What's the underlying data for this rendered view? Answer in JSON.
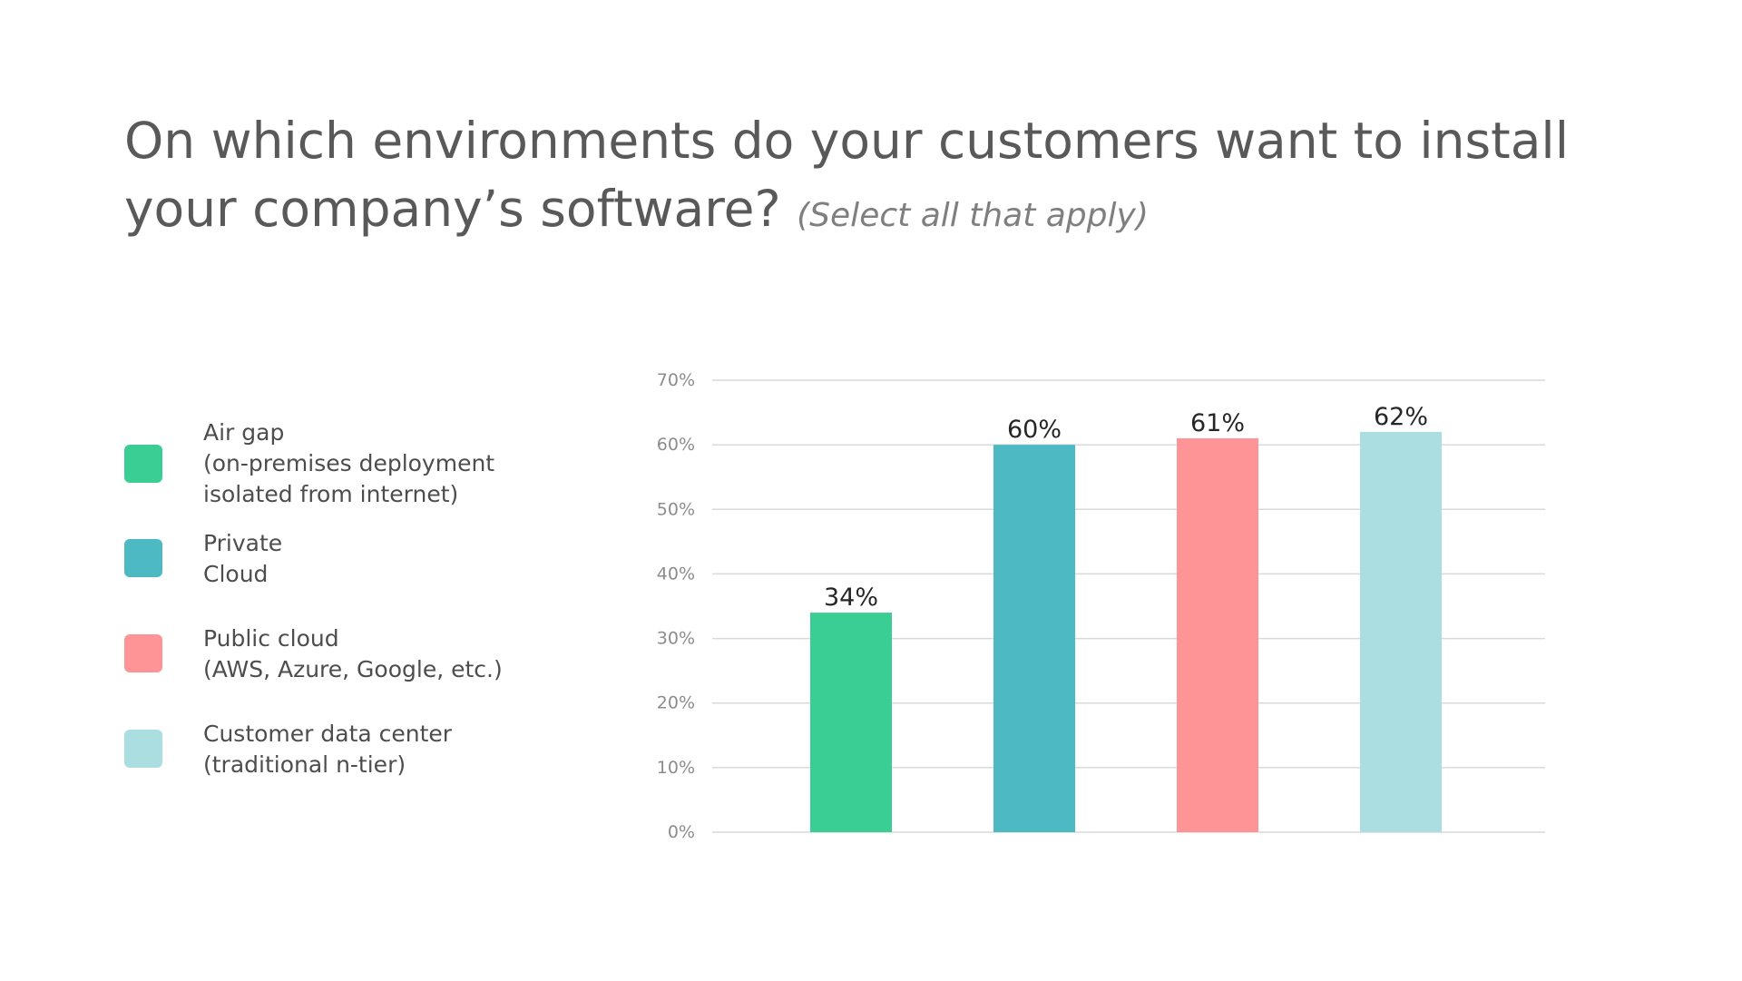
{
  "title": {
    "main": "On which environments do your customers want to install your company’s software?",
    "note": "(Select all that apply)"
  },
  "legend": [
    {
      "label": "Air gap\n(on-premises deployment\nisolated from internet)",
      "color": "#3acd94"
    },
    {
      "label": "Private\nCloud",
      "color": "#4db9c2"
    },
    {
      "label": "Public cloud\n(AWS, Azure, Google, etc.)",
      "color": "#ff9497"
    },
    {
      "label": "Customer data center\n(traditional n-tier)",
      "color": "#abdee1"
    }
  ],
  "chart_data": {
    "type": "bar",
    "categories": [
      "Air gap",
      "Private Cloud",
      "Public cloud",
      "Customer data center"
    ],
    "values": [
      34,
      60,
      61,
      62
    ],
    "value_labels": [
      "34%",
      "60%",
      "61%",
      "62%"
    ],
    "colors": [
      "#3acd94",
      "#4db9c2",
      "#ff9497",
      "#abdee1"
    ],
    "ylim": [
      0,
      70
    ],
    "yticks": [
      0,
      10,
      20,
      30,
      40,
      50,
      60,
      70
    ],
    "ytick_labels": [
      "0%",
      "10%",
      "20%",
      "30%",
      "40%",
      "50%",
      "60%",
      "70%"
    ],
    "grid": true,
    "legend_position": "left"
  }
}
